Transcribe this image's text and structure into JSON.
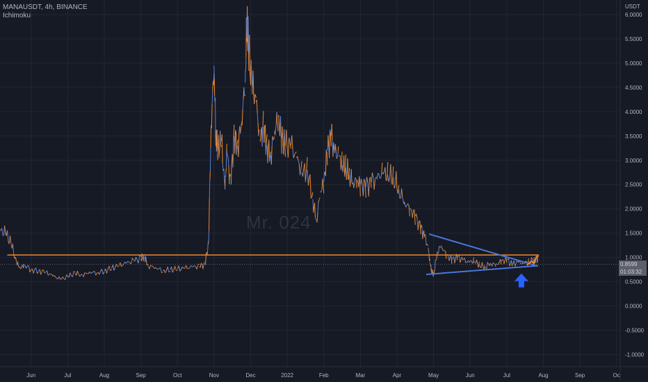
{
  "header": {
    "symbol_line": "MANAUSDT, 4h, BINANCE",
    "indicator_line": "Ichimoku"
  },
  "watermark": "Mr. 024",
  "price_tags": [
    {
      "value": "0.8599",
      "color": "#5d606b"
    },
    {
      "value": "01:03:32",
      "color": "#5d606b"
    }
  ],
  "chart_data": {
    "type": "line",
    "y_axis_unit": "USDT",
    "y_ticks": [
      6.0,
      5.5,
      5.0,
      4.5,
      4.0,
      3.5,
      3.0,
      2.5,
      2.0,
      1.5,
      1.0,
      0.5,
      0.0,
      -0.5,
      -1.0
    ],
    "y_tick_labels": [
      "6.0000",
      "5.5000",
      "5.0000",
      "4.5000",
      "4.0000",
      "3.5000",
      "3.0000",
      "2.5000",
      "2.0000",
      "1.5000",
      "1.0000",
      "0.5000",
      "0.0000",
      "-0.5000",
      "-1.0000"
    ],
    "ylim": [
      -1.25,
      6.3
    ],
    "x_ticks": [
      {
        "label": "Jun",
        "pos": 1
      },
      {
        "label": "Jul",
        "pos": 2
      },
      {
        "label": "Aug",
        "pos": 3
      },
      {
        "label": "Sep",
        "pos": 4
      },
      {
        "label": "Oct",
        "pos": 5
      },
      {
        "label": "Nov",
        "pos": 6
      },
      {
        "label": "Dec",
        "pos": 7
      },
      {
        "label": "2022",
        "pos": 8
      },
      {
        "label": "Feb",
        "pos": 9
      },
      {
        "label": "Mar",
        "pos": 10
      },
      {
        "label": "Apr",
        "pos": 11
      },
      {
        "label": "May",
        "pos": 12
      },
      {
        "label": "Jun",
        "pos": 13
      },
      {
        "label": "Jul",
        "pos": 14
      },
      {
        "label": "Aug",
        "pos": 15
      },
      {
        "label": "Sep",
        "pos": 16
      },
      {
        "label": "Oc",
        "pos": 17
      }
    ],
    "xlim": [
      0.15,
      17.1
    ],
    "price_series": [
      [
        0.15,
        1.55
      ],
      [
        0.3,
        1.5
      ],
      [
        0.45,
        1.3
      ],
      [
        0.6,
        0.9
      ],
      [
        0.7,
        0.78
      ],
      [
        0.8,
        0.85
      ],
      [
        1.0,
        0.75
      ],
      [
        1.2,
        0.72
      ],
      [
        1.4,
        0.7
      ],
      [
        1.6,
        0.62
      ],
      [
        1.8,
        0.55
      ],
      [
        2.0,
        0.6
      ],
      [
        2.2,
        0.68
      ],
      [
        2.4,
        0.63
      ],
      [
        2.6,
        0.7
      ],
      [
        2.8,
        0.68
      ],
      [
        3.0,
        0.72
      ],
      [
        3.2,
        0.78
      ],
      [
        3.4,
        0.83
      ],
      [
        3.6,
        0.88
      ],
      [
        3.8,
        0.93
      ],
      [
        4.0,
        0.98
      ],
      [
        4.1,
        1.02
      ],
      [
        4.2,
        0.82
      ],
      [
        4.4,
        0.8
      ],
      [
        4.6,
        0.72
      ],
      [
        4.8,
        0.75
      ],
      [
        5.0,
        0.76
      ],
      [
        5.2,
        0.78
      ],
      [
        5.4,
        0.8
      ],
      [
        5.6,
        0.82
      ],
      [
        5.75,
        0.85
      ],
      [
        5.85,
        1.3
      ],
      [
        5.92,
        3.7
      ],
      [
        6.0,
        4.95
      ],
      [
        6.05,
        3.5
      ],
      [
        6.1,
        3.2
      ],
      [
        6.2,
        3.4
      ],
      [
        6.3,
        2.4
      ],
      [
        6.35,
        3.2
      ],
      [
        6.45,
        2.5
      ],
      [
        6.55,
        3.5
      ],
      [
        6.65,
        3.3
      ],
      [
        6.75,
        3.8
      ],
      [
        6.85,
        4.6
      ],
      [
        6.9,
        5.9
      ],
      [
        6.95,
        5.2
      ],
      [
        7.05,
        4.5
      ],
      [
        7.15,
        4.2
      ],
      [
        7.25,
        3.4
      ],
      [
        7.35,
        3.7
      ],
      [
        7.45,
        3.3
      ],
      [
        7.55,
        3.1
      ],
      [
        7.65,
        3.6
      ],
      [
        7.75,
        3.9
      ],
      [
        7.85,
        3.45
      ],
      [
        7.95,
        3.3
      ],
      [
        8.1,
        3.3
      ],
      [
        8.25,
        3.05
      ],
      [
        8.4,
        2.75
      ],
      [
        8.55,
        2.8
      ],
      [
        8.7,
        2.2
      ],
      [
        8.8,
        1.75
      ],
      [
        8.9,
        2.35
      ],
      [
        9.0,
        2.55
      ],
      [
        9.1,
        3.2
      ],
      [
        9.2,
        3.5
      ],
      [
        9.3,
        3.15
      ],
      [
        9.4,
        3.1
      ],
      [
        9.5,
        2.9
      ],
      [
        9.6,
        2.85
      ],
      [
        9.7,
        2.7
      ],
      [
        9.8,
        2.55
      ],
      [
        9.9,
        2.6
      ],
      [
        10.0,
        2.5
      ],
      [
        10.15,
        2.45
      ],
      [
        10.3,
        2.55
      ],
      [
        10.45,
        2.6
      ],
      [
        10.6,
        2.75
      ],
      [
        10.75,
        2.7
      ],
      [
        10.9,
        2.65
      ],
      [
        11.05,
        2.4
      ],
      [
        11.2,
        2.15
      ],
      [
        11.35,
        2.0
      ],
      [
        11.5,
        1.85
      ],
      [
        11.65,
        1.6
      ],
      [
        11.75,
        1.45
      ],
      [
        11.85,
        1.2
      ],
      [
        11.9,
        0.9
      ],
      [
        11.95,
        0.7
      ],
      [
        12.0,
        0.65
      ],
      [
        12.1,
        1.1
      ],
      [
        12.2,
        1.25
      ],
      [
        12.35,
        1.05
      ],
      [
        12.5,
        0.95
      ],
      [
        12.65,
        1.0
      ],
      [
        12.8,
        0.95
      ],
      [
        12.95,
        0.9
      ],
      [
        13.1,
        0.93
      ],
      [
        13.25,
        0.85
      ],
      [
        13.4,
        0.8
      ],
      [
        13.55,
        0.88
      ],
      [
        13.7,
        0.85
      ],
      [
        13.85,
        0.92
      ],
      [
        14.0,
        0.95
      ],
      [
        14.15,
        0.85
      ],
      [
        14.3,
        0.9
      ],
      [
        14.45,
        0.88
      ],
      [
        14.6,
        0.92
      ],
      [
        14.75,
        0.95
      ],
      [
        14.85,
        0.97
      ]
    ],
    "projection_line": [
      [
        14.55,
        0.84
      ],
      [
        14.68,
        0.92
      ],
      [
        14.74,
        0.88
      ],
      [
        14.8,
        0.99
      ],
      [
        14.84,
        1.02
      ],
      [
        14.87,
        1.03
      ]
    ],
    "horizontal_level": {
      "y": 1.05,
      "x_from": 0.35,
      "x_to": 14.88,
      "color": "#ef8b2c"
    },
    "triangle_upper": [
      [
        11.88,
        1.48
      ],
      [
        14.85,
        0.82
      ]
    ],
    "triangle_lower": [
      [
        11.8,
        0.65
      ],
      [
        14.85,
        0.83
      ]
    ],
    "arrow": {
      "x": 14.4,
      "y_tip": 0.67,
      "color": "#2962ff"
    },
    "colors": {
      "background": "#161a25",
      "grid": "#232735",
      "price_up": "#5b82d6",
      "price_down": "#ef8b2c",
      "trendline": "#4a77d8",
      "axis_text": "#b2b5be"
    },
    "grid": true
  }
}
